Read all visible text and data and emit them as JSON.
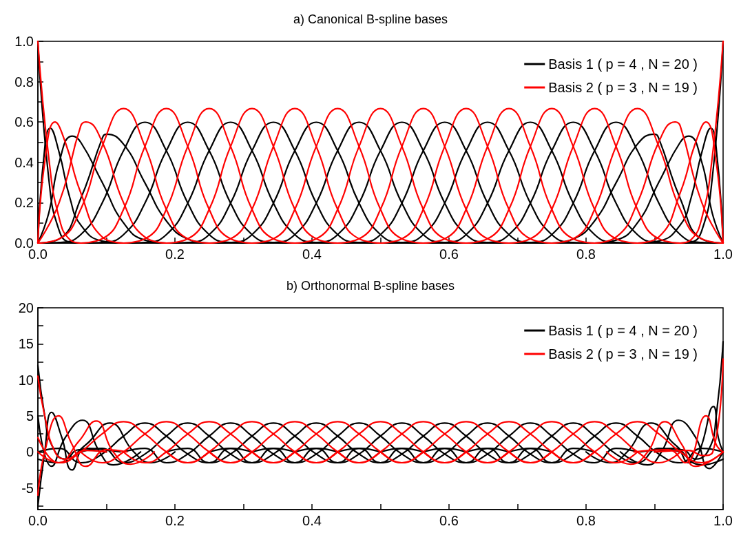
{
  "chart_data": [
    {
      "type": "line",
      "title": "a) Canonical B-spline bases",
      "legend": "top right",
      "grid": false,
      "marker": "none",
      "line_style": "solid",
      "xlim": [
        0,
        1
      ],
      "ylim": [
        0,
        1
      ],
      "xticks": [
        {
          "value": 0,
          "label": "0.0"
        },
        {
          "value": 0.1,
          "label": null
        },
        0.2,
        {
          "value": 0.3,
          "label": null
        },
        0.4,
        {
          "value": 0.5,
          "label": null
        },
        0.6,
        {
          "value": 0.7,
          "label": null
        },
        0.8,
        {
          "value": 0.9,
          "label": null
        },
        {
          "value": 1,
          "label": "1.0"
        }
      ],
      "yticks": [
        {
          "value": 0,
          "label": "0.0"
        },
        {
          "value": 0.1,
          "label": null
        },
        0.2,
        {
          "value": 0.3,
          "label": null
        },
        0.4,
        {
          "value": 0.5,
          "label": null
        },
        0.6,
        {
          "value": 0.7,
          "label": null
        },
        0.8,
        {
          "value": 0.9,
          "label": null
        },
        {
          "value": 1,
          "label": "1.0"
        }
      ],
      "series": [
        {
          "name": "Basis 1 ( p = 4 , N = 20 )",
          "color": "#000000",
          "x": [
            0,
            0.016,
            0.031,
            0.047,
            0.0625
          ],
          "values": [
            1,
            0.316,
            0.063,
            0.004,
            0
          ]
        },
        {
          "color": "#000000",
          "x": [
            0,
            0.008,
            0.018,
            0.031,
            0.047,
            0.0625,
            0.094,
            0.125
          ],
          "values": [
            0,
            0.4,
            0.57,
            0.45,
            0.22,
            0.09,
            0.01,
            0
          ]
        },
        {
          "color": "#000000",
          "x": [
            0,
            0.016,
            0.031,
            0.05,
            0.0625,
            0.094,
            0.125,
            0.156,
            0.1875
          ],
          "values": [
            0,
            0.15,
            0.4,
            0.53,
            0.5,
            0.3,
            0.1,
            0.015,
            0
          ]
        },
        {
          "color": "#000000",
          "x": [
            0,
            0.031,
            0.0625,
            0.094,
            0.1,
            0.125,
            0.156,
            0.1875,
            0.219,
            0.25
          ],
          "values": [
            0,
            0.02,
            0.22,
            0.52,
            0.54,
            0.49,
            0.3,
            0.11,
            0.02,
            0
          ]
        },
        {
          "color": "#000000",
          "x": [
            0,
            0.03125,
            0.0625,
            0.09375,
            0.125,
            0.15625,
            0.1875,
            0.21875,
            0.25,
            0.28125,
            0.3125
          ],
          "values": [
            0,
            0.003,
            0.042,
            0.198,
            0.458,
            0.599,
            0.458,
            0.198,
            0.042,
            0.003,
            0
          ]
        },
        {
          "color": "#000000",
          "x": [
            0.0625,
            0.09375,
            0.125,
            0.15625,
            0.1875,
            0.21875,
            0.25,
            0.28125,
            0.3125,
            0.34375,
            0.375
          ],
          "values": [
            0,
            0.003,
            0.042,
            0.198,
            0.458,
            0.599,
            0.458,
            0.198,
            0.042,
            0.003,
            0
          ]
        },
        {
          "color": "#000000",
          "x": [
            0.125,
            0.15625,
            0.1875,
            0.21875,
            0.25,
            0.28125,
            0.3125,
            0.34375,
            0.375,
            0.40625,
            0.4375
          ],
          "values": [
            0,
            0.003,
            0.042,
            0.198,
            0.458,
            0.599,
            0.458,
            0.198,
            0.042,
            0.003,
            0
          ]
        },
        {
          "color": "#000000",
          "x": [
            0.1875,
            0.21875,
            0.25,
            0.28125,
            0.3125,
            0.34375,
            0.375,
            0.40625,
            0.4375,
            0.46875,
            0.5
          ],
          "values": [
            0,
            0.003,
            0.042,
            0.198,
            0.458,
            0.599,
            0.458,
            0.198,
            0.042,
            0.003,
            0
          ]
        },
        {
          "color": "#000000",
          "x": [
            0.25,
            0.28125,
            0.3125,
            0.34375,
            0.375,
            0.40625,
            0.4375,
            0.46875,
            0.5,
            0.53125,
            0.5625
          ],
          "values": [
            0,
            0.003,
            0.042,
            0.198,
            0.458,
            0.599,
            0.458,
            0.198,
            0.042,
            0.003,
            0
          ]
        },
        {
          "color": "#000000",
          "x": [
            0.3125,
            0.34375,
            0.375,
            0.40625,
            0.4375,
            0.46875,
            0.5,
            0.53125,
            0.5625,
            0.59375,
            0.625
          ],
          "values": [
            0,
            0.003,
            0.042,
            0.198,
            0.458,
            0.599,
            0.458,
            0.198,
            0.042,
            0.003,
            0
          ]
        },
        {
          "color": "#000000",
          "x": [
            0.375,
            0.40625,
            0.4375,
            0.46875,
            0.5,
            0.53125,
            0.5625,
            0.59375,
            0.625,
            0.65625,
            0.6875
          ],
          "values": [
            0,
            0.003,
            0.042,
            0.198,
            0.458,
            0.599,
            0.458,
            0.198,
            0.042,
            0.003,
            0
          ]
        },
        {
          "color": "#000000",
          "x": [
            0.4375,
            0.46875,
            0.5,
            0.53125,
            0.5625,
            0.59375,
            0.625,
            0.65625,
            0.6875,
            0.71875,
            0.75
          ],
          "values": [
            0,
            0.003,
            0.042,
            0.198,
            0.458,
            0.599,
            0.458,
            0.198,
            0.042,
            0.003,
            0
          ]
        },
        {
          "color": "#000000",
          "x": [
            0.5,
            0.53125,
            0.5625,
            0.59375,
            0.625,
            0.65625,
            0.6875,
            0.71875,
            0.75,
            0.78125,
            0.8125
          ],
          "values": [
            0,
            0.003,
            0.042,
            0.198,
            0.458,
            0.599,
            0.458,
            0.198,
            0.042,
            0.003,
            0
          ]
        },
        {
          "color": "#000000",
          "x": [
            0.5625,
            0.59375,
            0.625,
            0.65625,
            0.6875,
            0.71875,
            0.75,
            0.78125,
            0.8125,
            0.84375,
            0.875
          ],
          "values": [
            0,
            0.003,
            0.042,
            0.198,
            0.458,
            0.599,
            0.458,
            0.198,
            0.042,
            0.003,
            0
          ]
        },
        {
          "color": "#000000",
          "x": [
            0.625,
            0.65625,
            0.6875,
            0.71875,
            0.75,
            0.78125,
            0.8125,
            0.84375,
            0.875,
            0.90625,
            0.9375
          ],
          "values": [
            0,
            0.003,
            0.042,
            0.198,
            0.458,
            0.599,
            0.458,
            0.198,
            0.042,
            0.003,
            0
          ]
        },
        {
          "color": "#000000",
          "x": [
            0.6875,
            0.71875,
            0.75,
            0.78125,
            0.8125,
            0.84375,
            0.875,
            0.90625,
            0.9375,
            0.96875,
            1
          ],
          "values": [
            0,
            0.003,
            0.042,
            0.198,
            0.458,
            0.599,
            0.458,
            0.198,
            0.042,
            0.003,
            0
          ]
        },
        {
          "color": "#000000",
          "x": [
            0.75,
            0.781,
            0.8125,
            0.844,
            0.875,
            0.9,
            0.906,
            0.9375,
            0.969,
            1
          ],
          "values": [
            0,
            0.02,
            0.11,
            0.3,
            0.49,
            0.54,
            0.52,
            0.22,
            0.02,
            0
          ]
        },
        {
          "color": "#000000",
          "x": [
            0.8125,
            0.844,
            0.875,
            0.906,
            0.9375,
            0.95,
            0.969,
            0.984,
            1
          ],
          "values": [
            0,
            0.015,
            0.1,
            0.3,
            0.5,
            0.53,
            0.4,
            0.15,
            0
          ]
        },
        {
          "color": "#000000",
          "x": [
            0.875,
            0.906,
            0.9375,
            0.953,
            0.969,
            0.982,
            0.992,
            1
          ],
          "values": [
            0,
            0.01,
            0.09,
            0.22,
            0.45,
            0.57,
            0.4,
            0
          ]
        },
        {
          "color": "#000000",
          "x": [
            0.9375,
            0.953,
            0.969,
            0.984,
            1
          ],
          "values": [
            0,
            0.004,
            0.063,
            0.316,
            1
          ]
        },
        {
          "name": "Basis 2 ( p = 3 , N = 19 )",
          "color": "#ff0000",
          "x": [
            0,
            0.016,
            0.031,
            0.047,
            0.0625
          ],
          "values": [
            1,
            0.42,
            0.125,
            0.016,
            0
          ]
        },
        {
          "color": "#ff0000",
          "x": [
            0,
            0.01,
            0.025,
            0.04,
            0.0625,
            0.094,
            0.125
          ],
          "values": [
            0,
            0.4,
            0.6,
            0.5,
            0.25,
            0.03,
            0
          ]
        },
        {
          "color": "#ff0000",
          "x": [
            0,
            0.031,
            0.0625,
            0.07,
            0.094,
            0.125,
            0.156,
            0.1875
          ],
          "values": [
            0,
            0.2,
            0.58,
            0.6,
            0.5,
            0.2,
            0.03,
            0
          ]
        },
        {
          "color": "#ff0000",
          "x": [
            0,
            0.03125,
            0.0625,
            0.09375,
            0.125,
            0.15625,
            0.1875,
            0.21875,
            0.25
          ],
          "values": [
            0,
            0.021,
            0.167,
            0.479,
            0.667,
            0.479,
            0.167,
            0.021,
            0
          ]
        },
        {
          "color": "#ff0000",
          "x": [
            0.0625,
            0.09375,
            0.125,
            0.15625,
            0.1875,
            0.21875,
            0.25,
            0.28125,
            0.3125
          ],
          "values": [
            0,
            0.021,
            0.167,
            0.479,
            0.667,
            0.479,
            0.167,
            0.021,
            0
          ]
        },
        {
          "color": "#ff0000",
          "x": [
            0.125,
            0.15625,
            0.1875,
            0.21875,
            0.25,
            0.28125,
            0.3125,
            0.34375,
            0.375
          ],
          "values": [
            0,
            0.021,
            0.167,
            0.479,
            0.667,
            0.479,
            0.167,
            0.021,
            0
          ]
        },
        {
          "color": "#ff0000",
          "x": [
            0.1875,
            0.21875,
            0.25,
            0.28125,
            0.3125,
            0.34375,
            0.375,
            0.40625,
            0.4375
          ],
          "values": [
            0,
            0.021,
            0.167,
            0.479,
            0.667,
            0.479,
            0.167,
            0.021,
            0
          ]
        },
        {
          "color": "#ff0000",
          "x": [
            0.25,
            0.28125,
            0.3125,
            0.34375,
            0.375,
            0.40625,
            0.4375,
            0.46875,
            0.5
          ],
          "values": [
            0,
            0.021,
            0.167,
            0.479,
            0.667,
            0.479,
            0.167,
            0.021,
            0
          ]
        },
        {
          "color": "#ff0000",
          "x": [
            0.3125,
            0.34375,
            0.375,
            0.40625,
            0.4375,
            0.46875,
            0.5,
            0.53125,
            0.5625
          ],
          "values": [
            0,
            0.021,
            0.167,
            0.479,
            0.667,
            0.479,
            0.167,
            0.021,
            0
          ]
        },
        {
          "color": "#ff0000",
          "x": [
            0.375,
            0.40625,
            0.4375,
            0.46875,
            0.5,
            0.53125,
            0.5625,
            0.59375,
            0.625
          ],
          "values": [
            0,
            0.021,
            0.167,
            0.479,
            0.667,
            0.479,
            0.167,
            0.021,
            0
          ]
        },
        {
          "color": "#ff0000",
          "x": [
            0.4375,
            0.46875,
            0.5,
            0.53125,
            0.5625,
            0.59375,
            0.625,
            0.65625,
            0.6875
          ],
          "values": [
            0,
            0.021,
            0.167,
            0.479,
            0.667,
            0.479,
            0.167,
            0.021,
            0
          ]
        },
        {
          "color": "#ff0000",
          "x": [
            0.5,
            0.53125,
            0.5625,
            0.59375,
            0.625,
            0.65625,
            0.6875,
            0.71875,
            0.75
          ],
          "values": [
            0,
            0.021,
            0.167,
            0.479,
            0.667,
            0.479,
            0.167,
            0.021,
            0
          ]
        },
        {
          "color": "#ff0000",
          "x": [
            0.5625,
            0.59375,
            0.625,
            0.65625,
            0.6875,
            0.71875,
            0.75,
            0.78125,
            0.8125
          ],
          "values": [
            0,
            0.021,
            0.167,
            0.479,
            0.667,
            0.479,
            0.167,
            0.021,
            0
          ]
        },
        {
          "color": "#ff0000",
          "x": [
            0.625,
            0.65625,
            0.6875,
            0.71875,
            0.75,
            0.78125,
            0.8125,
            0.84375,
            0.875
          ],
          "values": [
            0,
            0.021,
            0.167,
            0.479,
            0.667,
            0.479,
            0.167,
            0.021,
            0
          ]
        },
        {
          "color": "#ff0000",
          "x": [
            0.6875,
            0.71875,
            0.75,
            0.78125,
            0.8125,
            0.84375,
            0.875,
            0.90625,
            0.9375
          ],
          "values": [
            0,
            0.021,
            0.167,
            0.479,
            0.667,
            0.479,
            0.167,
            0.021,
            0
          ]
        },
        {
          "color": "#ff0000",
          "x": [
            0.75,
            0.78125,
            0.8125,
            0.84375,
            0.875,
            0.90625,
            0.9375,
            0.96875,
            1
          ],
          "values": [
            0,
            0.021,
            0.167,
            0.479,
            0.667,
            0.479,
            0.167,
            0.021,
            0
          ]
        },
        {
          "color": "#ff0000",
          "x": [
            0.8125,
            0.844,
            0.875,
            0.906,
            0.93,
            0.9375,
            0.969,
            1
          ],
          "values": [
            0,
            0.03,
            0.2,
            0.5,
            0.6,
            0.58,
            0.2,
            0
          ]
        },
        {
          "color": "#ff0000",
          "x": [
            0.875,
            0.906,
            0.9375,
            0.96,
            0.975,
            0.99,
            1
          ],
          "values": [
            0,
            0.03,
            0.25,
            0.5,
            0.6,
            0.4,
            0
          ]
        },
        {
          "color": "#ff0000",
          "x": [
            0.9375,
            0.953,
            0.969,
            0.984,
            1
          ],
          "values": [
            0,
            0.016,
            0.125,
            0.42,
            1
          ]
        }
      ]
    },
    {
      "type": "line",
      "title": "b) Orthonormal B-spline bases",
      "legend": "top right",
      "grid": false,
      "marker": "none",
      "line_style": "solid",
      "xlim": [
        0,
        1
      ],
      "ylim": [
        -8,
        20
      ],
      "xticks": [
        {
          "value": 0,
          "label": "0.0"
        },
        {
          "value": 0.1,
          "label": null
        },
        0.2,
        {
          "value": 0.3,
          "label": null
        },
        0.4,
        {
          "value": 0.5,
          "label": null
        },
        0.6,
        {
          "value": 0.7,
          "label": null
        },
        0.8,
        {
          "value": 0.9,
          "label": null
        },
        {
          "value": 1,
          "label": "1.0"
        }
      ],
      "yticks": [
        {
          "value": -7.5,
          "label": null
        },
        -5,
        {
          "value": -2.5,
          "label": null
        },
        0,
        {
          "value": 2.5,
          "label": null
        },
        5,
        {
          "value": 7.5,
          "label": null
        },
        10,
        {
          "value": 12.5,
          "label": null
        },
        15,
        {
          "value": 17.5,
          "label": null
        },
        20
      ],
      "series": [
        {
          "name": "Basis 1 ( p = 4 , N = 20 )",
          "color": "#000000",
          "x": [
            0,
            0.01,
            0.02,
            0.04,
            0.06,
            0.1
          ],
          "values": [
            12,
            5,
            1,
            -1,
            0.3,
            0
          ]
        },
        {
          "color": "#000000",
          "x": [
            0,
            0.01,
            0.02,
            0.035,
            0.05,
            0.07,
            0.12
          ],
          "values": [
            -7.5,
            0,
            5.5,
            2,
            -2.5,
            0.5,
            0
          ]
        },
        {
          "color": "#000000",
          "x": [
            0,
            0.02,
            0.04,
            0.065,
            0.09,
            0.11,
            0.15
          ],
          "values": [
            5,
            -2,
            2,
            4.4,
            0,
            -1.8,
            0
          ]
        },
        {
          "color": "#000000",
          "x": [
            0,
            0.03,
            0.07,
            0.105,
            0.14,
            0.165,
            0.2
          ],
          "values": [
            -1,
            -1.5,
            1,
            4,
            0,
            -1.5,
            0
          ]
        },
        {
          "color": "#000000",
          "x": [
            0,
            0.03125,
            0.0625,
            0.09375,
            0.125,
            0.15625,
            0.1875,
            0.21875,
            0.25,
            0.28125,
            0.3125
          ],
          "values": [
            0,
            0.5,
            -1.5,
            -0.3,
            2.2,
            4,
            2.2,
            -0.3,
            -1.5,
            0.5,
            0
          ]
        },
        {
          "color": "#000000",
          "x": [
            0.0625,
            0.09375,
            0.125,
            0.15625,
            0.1875,
            0.21875,
            0.25,
            0.28125,
            0.3125,
            0.34375,
            0.375
          ],
          "values": [
            0,
            0.5,
            -1.5,
            -0.3,
            2.2,
            4,
            2.2,
            -0.3,
            -1.5,
            0.5,
            0
          ]
        },
        {
          "color": "#000000",
          "x": [
            0.125,
            0.15625,
            0.1875,
            0.21875,
            0.25,
            0.28125,
            0.3125,
            0.34375,
            0.375,
            0.40625,
            0.4375
          ],
          "values": [
            0,
            0.5,
            -1.5,
            -0.3,
            2.2,
            4,
            2.2,
            -0.3,
            -1.5,
            0.5,
            0
          ]
        },
        {
          "color": "#000000",
          "x": [
            0.1875,
            0.21875,
            0.25,
            0.28125,
            0.3125,
            0.34375,
            0.375,
            0.40625,
            0.4375,
            0.46875,
            0.5
          ],
          "values": [
            0,
            0.5,
            -1.5,
            -0.3,
            2.2,
            4,
            2.2,
            -0.3,
            -1.5,
            0.5,
            0
          ]
        },
        {
          "color": "#000000",
          "x": [
            0.25,
            0.28125,
            0.3125,
            0.34375,
            0.375,
            0.40625,
            0.4375,
            0.46875,
            0.5,
            0.53125,
            0.5625
          ],
          "values": [
            0,
            0.5,
            -1.5,
            -0.3,
            2.2,
            4,
            2.2,
            -0.3,
            -1.5,
            0.5,
            0
          ]
        },
        {
          "color": "#000000",
          "x": [
            0.3125,
            0.34375,
            0.375,
            0.40625,
            0.4375,
            0.46875,
            0.5,
            0.53125,
            0.5625,
            0.59375,
            0.625
          ],
          "values": [
            0,
            0.5,
            -1.5,
            -0.3,
            2.2,
            4,
            2.2,
            -0.3,
            -1.5,
            0.5,
            0
          ]
        },
        {
          "color": "#000000",
          "x": [
            0.375,
            0.40625,
            0.4375,
            0.46875,
            0.5,
            0.53125,
            0.5625,
            0.59375,
            0.625,
            0.65625,
            0.6875
          ],
          "values": [
            0,
            0.5,
            -1.5,
            -0.3,
            2.2,
            4,
            2.2,
            -0.3,
            -1.5,
            0.5,
            0
          ]
        },
        {
          "color": "#000000",
          "x": [
            0.4375,
            0.46875,
            0.5,
            0.53125,
            0.5625,
            0.59375,
            0.625,
            0.65625,
            0.6875,
            0.71875,
            0.75
          ],
          "values": [
            0,
            0.5,
            -1.5,
            -0.3,
            2.2,
            4,
            2.2,
            -0.3,
            -1.5,
            0.5,
            0
          ]
        },
        {
          "color": "#000000",
          "x": [
            0.5,
            0.53125,
            0.5625,
            0.59375,
            0.625,
            0.65625,
            0.6875,
            0.71875,
            0.75,
            0.78125,
            0.8125
          ],
          "values": [
            0,
            0.5,
            -1.5,
            -0.3,
            2.2,
            4,
            2.2,
            -0.3,
            -1.5,
            0.5,
            0
          ]
        },
        {
          "color": "#000000",
          "x": [
            0.5625,
            0.59375,
            0.625,
            0.65625,
            0.6875,
            0.71875,
            0.75,
            0.78125,
            0.8125,
            0.84375,
            0.875
          ],
          "values": [
            0,
            0.5,
            -1.5,
            -0.3,
            2.2,
            4,
            2.2,
            -0.3,
            -1.5,
            0.5,
            0
          ]
        },
        {
          "color": "#000000",
          "x": [
            0.625,
            0.65625,
            0.6875,
            0.71875,
            0.75,
            0.78125,
            0.8125,
            0.84375,
            0.875,
            0.90625,
            0.9375
          ],
          "values": [
            0,
            0.5,
            -1.5,
            -0.3,
            2.2,
            4,
            2.2,
            -0.3,
            -1.5,
            0.5,
            0
          ]
        },
        {
          "color": "#000000",
          "x": [
            0.6875,
            0.71875,
            0.75,
            0.78125,
            0.8125,
            0.84375,
            0.875,
            0.90625,
            0.9375,
            0.96875,
            1
          ],
          "values": [
            0,
            0.5,
            -1.5,
            -0.3,
            2.2,
            4,
            2.2,
            -0.3,
            -1.5,
            0.5,
            0
          ]
        },
        {
          "color": "#000000",
          "x": [
            0.8,
            0.835,
            0.86,
            0.895,
            0.93,
            0.97,
            1
          ],
          "values": [
            0,
            -1.5,
            0,
            4,
            1,
            -1.8,
            -1
          ]
        },
        {
          "color": "#000000",
          "x": [
            0.85,
            0.89,
            0.91,
            0.935,
            0.96,
            0.98,
            1
          ],
          "values": [
            0,
            -1.8,
            0,
            4.4,
            2,
            -2.3,
            0
          ]
        },
        {
          "color": "#000000",
          "x": [
            0.88,
            0.93,
            0.95,
            0.965,
            0.986,
            0.993,
            1
          ],
          "values": [
            0,
            0.5,
            -1.5,
            0,
            6.3,
            2,
            0
          ]
        },
        {
          "color": "#000000",
          "x": [
            0.9,
            0.94,
            0.96,
            0.98,
            0.99,
            1
          ],
          "values": [
            0,
            0.3,
            -1,
            0.5,
            5,
            15.3
          ]
        },
        {
          "name": "Basis 2 ( p = 3 , N = 19 )",
          "color": "#ff0000",
          "x": [
            0,
            0.01,
            0.025,
            0.04,
            0.07,
            0.1
          ],
          "values": [
            10.5,
            5,
            0,
            -1,
            0.2,
            0
          ]
        },
        {
          "color": "#ff0000",
          "x": [
            0,
            0.01,
            0.03,
            0.05,
            0.07,
            0.1,
            0.13
          ],
          "values": [
            -6,
            0,
            5,
            1,
            -2,
            0.3,
            0
          ]
        },
        {
          "color": "#ff0000",
          "x": [
            0,
            0.03,
            0.06,
            0.085,
            0.11,
            0.135,
            0.17
          ],
          "values": [
            2,
            -1.5,
            1.5,
            4.3,
            0,
            -1.7,
            0
          ]
        },
        {
          "color": "#ff0000",
          "x": [
            0,
            0.03125,
            0.0625,
            0.09375,
            0.125,
            0.15625,
            0.1875,
            0.21875,
            0.25
          ],
          "values": [
            0,
            -1.5,
            0,
            2.5,
            4.2,
            2.5,
            0,
            -1.5,
            0
          ]
        },
        {
          "color": "#ff0000",
          "x": [
            0.0625,
            0.09375,
            0.125,
            0.15625,
            0.1875,
            0.21875,
            0.25,
            0.28125,
            0.3125
          ],
          "values": [
            0,
            -1.5,
            0,
            2.5,
            4.2,
            2.5,
            0,
            -1.5,
            0
          ]
        },
        {
          "color": "#ff0000",
          "x": [
            0.125,
            0.15625,
            0.1875,
            0.21875,
            0.25,
            0.28125,
            0.3125,
            0.34375,
            0.375
          ],
          "values": [
            0,
            -1.5,
            0,
            2.5,
            4.2,
            2.5,
            0,
            -1.5,
            0
          ]
        },
        {
          "color": "#ff0000",
          "x": [
            0.1875,
            0.21875,
            0.25,
            0.28125,
            0.3125,
            0.34375,
            0.375,
            0.40625,
            0.4375
          ],
          "values": [
            0,
            -1.5,
            0,
            2.5,
            4.2,
            2.5,
            0,
            -1.5,
            0
          ]
        },
        {
          "color": "#ff0000",
          "x": [
            0.25,
            0.28125,
            0.3125,
            0.34375,
            0.375,
            0.40625,
            0.4375,
            0.46875,
            0.5
          ],
          "values": [
            0,
            -1.5,
            0,
            2.5,
            4.2,
            2.5,
            0,
            -1.5,
            0
          ]
        },
        {
          "color": "#ff0000",
          "x": [
            0.3125,
            0.34375,
            0.375,
            0.40625,
            0.4375,
            0.46875,
            0.5,
            0.53125,
            0.5625
          ],
          "values": [
            0,
            -1.5,
            0,
            2.5,
            4.2,
            2.5,
            0,
            -1.5,
            0
          ]
        },
        {
          "color": "#ff0000",
          "x": [
            0.375,
            0.40625,
            0.4375,
            0.46875,
            0.5,
            0.53125,
            0.5625,
            0.59375,
            0.625
          ],
          "values": [
            0,
            -1.5,
            0,
            2.5,
            4.2,
            2.5,
            0,
            -1.5,
            0
          ]
        },
        {
          "color": "#ff0000",
          "x": [
            0.4375,
            0.46875,
            0.5,
            0.53125,
            0.5625,
            0.59375,
            0.625,
            0.65625,
            0.6875
          ],
          "values": [
            0,
            -1.5,
            0,
            2.5,
            4.2,
            2.5,
            0,
            -1.5,
            0
          ]
        },
        {
          "color": "#ff0000",
          "x": [
            0.5,
            0.53125,
            0.5625,
            0.59375,
            0.625,
            0.65625,
            0.6875,
            0.71875,
            0.75
          ],
          "values": [
            0,
            -1.5,
            0,
            2.5,
            4.2,
            2.5,
            0,
            -1.5,
            0
          ]
        },
        {
          "color": "#ff0000",
          "x": [
            0.5625,
            0.59375,
            0.625,
            0.65625,
            0.6875,
            0.71875,
            0.75,
            0.78125,
            0.8125
          ],
          "values": [
            0,
            -1.5,
            0,
            2.5,
            4.2,
            2.5,
            0,
            -1.5,
            0
          ]
        },
        {
          "color": "#ff0000",
          "x": [
            0.625,
            0.65625,
            0.6875,
            0.71875,
            0.75,
            0.78125,
            0.8125,
            0.84375,
            0.875
          ],
          "values": [
            0,
            -1.5,
            0,
            2.5,
            4.2,
            2.5,
            0,
            -1.5,
            0
          ]
        },
        {
          "color": "#ff0000",
          "x": [
            0.6875,
            0.71875,
            0.75,
            0.78125,
            0.8125,
            0.84375,
            0.875,
            0.90625,
            0.9375
          ],
          "values": [
            0,
            -1.5,
            0,
            2.5,
            4.2,
            2.5,
            0,
            -1.5,
            0
          ]
        },
        {
          "color": "#ff0000",
          "x": [
            0.75,
            0.78125,
            0.8125,
            0.84375,
            0.875,
            0.90625,
            0.9375,
            0.96875,
            1
          ],
          "values": [
            0,
            -1.5,
            0,
            2.5,
            4.2,
            2.5,
            0,
            -1.5,
            0
          ]
        },
        {
          "color": "#ff0000",
          "x": [
            0.83,
            0.865,
            0.89,
            0.915,
            0.94,
            0.96,
            1
          ],
          "values": [
            0,
            -1.7,
            0,
            4.2,
            1,
            -2,
            0
          ]
        },
        {
          "color": "#ff0000",
          "x": [
            0.87,
            0.92,
            0.945,
            0.975,
            0.99,
            1
          ],
          "values": [
            0,
            0.3,
            -1.5,
            5,
            1,
            0
          ]
        },
        {
          "color": "#ff0000",
          "x": [
            0.9,
            0.95,
            0.97,
            0.985,
            1
          ],
          "values": [
            0,
            0.2,
            -0.5,
            0,
            12.9
          ]
        }
      ]
    }
  ]
}
